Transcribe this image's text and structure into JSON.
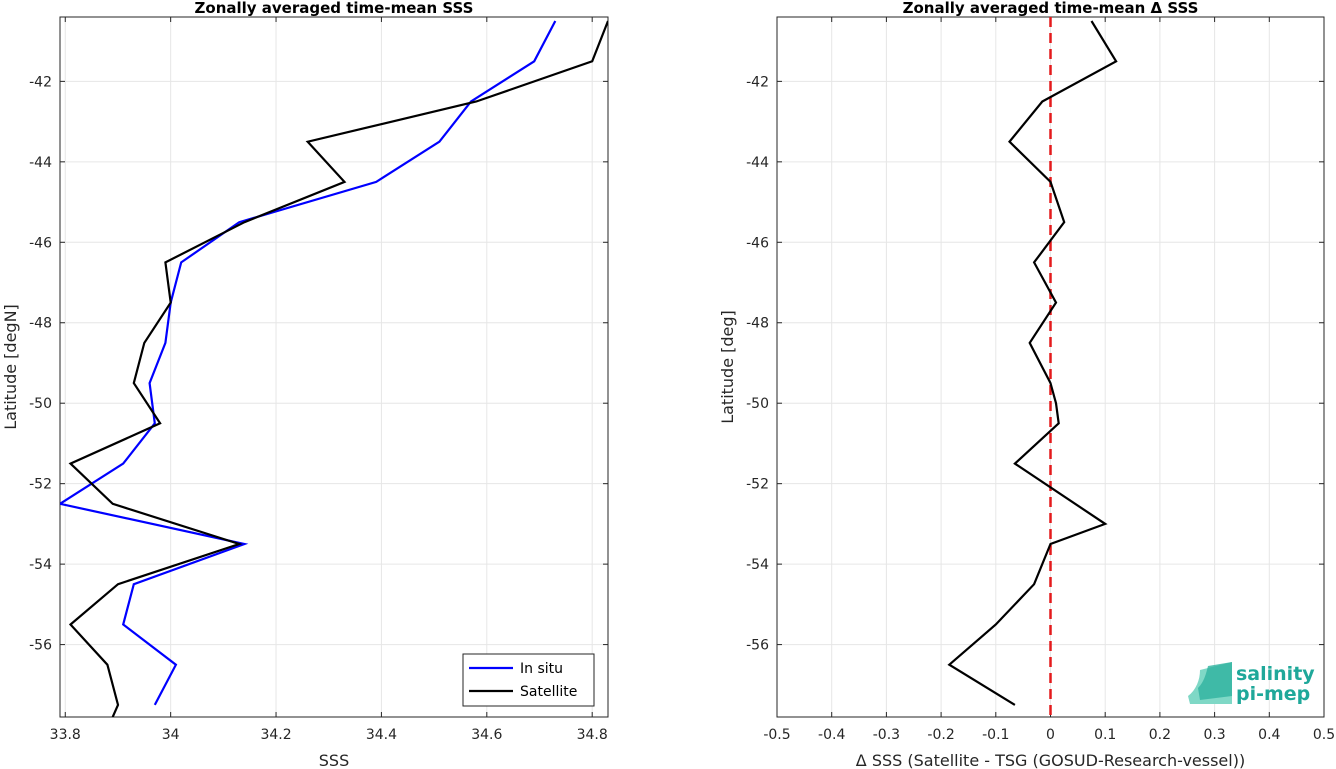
{
  "chart_data": [
    {
      "type": "line",
      "title": "Zonally averaged time-mean SSS",
      "xlabel": "SSS",
      "ylabel": "Latitude [degN]",
      "xlim": [
        33.79,
        34.83
      ],
      "ylim": [
        -57.8,
        -40.4
      ],
      "xticks": [
        "33.8",
        "34",
        "34.2",
        "34.4",
        "34.6",
        "34.8"
      ],
      "xtick_values": [
        33.8,
        34.0,
        34.2,
        34.4,
        34.6,
        34.8
      ],
      "yticks": [
        "-42",
        "-44",
        "-46",
        "-48",
        "-50",
        "-52",
        "-54",
        "-56"
      ],
      "ytick_values": [
        -42,
        -44,
        -46,
        -48,
        -50,
        -52,
        -54,
        -56
      ],
      "grid": true,
      "legend_position": "bottom-right",
      "series": [
        {
          "name": "In situ",
          "color": "#0000ff",
          "x": [
            34.73,
            34.69,
            34.57,
            34.51,
            34.39,
            34.13,
            34.02,
            34.0,
            33.99,
            33.96,
            33.97,
            33.91,
            33.79,
            34.14,
            33.93,
            33.91,
            34.01,
            33.97
          ],
          "y": [
            -40.5,
            -41.5,
            -42.5,
            -43.5,
            -44.5,
            -45.5,
            -46.5,
            -47.5,
            -48.5,
            -49.5,
            -50.5,
            -51.5,
            -52.5,
            -53.5,
            -54.5,
            -55.5,
            -56.5,
            -57.5
          ]
        },
        {
          "name": "Satellite",
          "color": "#000000",
          "x": [
            34.83,
            34.8,
            34.58,
            34.26,
            34.33,
            34.14,
            33.99,
            34.0,
            33.95,
            33.93,
            33.98,
            33.81,
            33.89,
            34.13,
            33.9,
            33.81,
            33.88,
            33.9,
            33.89
          ],
          "y": [
            -40.5,
            -41.5,
            -42.5,
            -43.5,
            -44.5,
            -45.5,
            -46.5,
            -47.5,
            -48.5,
            -49.5,
            -50.5,
            -51.5,
            -52.5,
            -53.5,
            -54.5,
            -55.5,
            -56.5,
            -57.5,
            -57.8
          ]
        }
      ]
    },
    {
      "type": "line",
      "title": "Zonally averaged time-mean Δ SSS",
      "xlabel": "Δ SSS (Satellite - TSG (GOSUD-Research-vessel))",
      "ylabel": "Latitude [deg]",
      "xlim": [
        -0.5,
        0.5
      ],
      "ylim": [
        -57.8,
        -40.4
      ],
      "xticks": [
        "-0.5",
        "-0.4",
        "-0.3",
        "-0.2",
        "-0.1",
        "0",
        "0.1",
        "0.2",
        "0.3",
        "0.4",
        "0.5"
      ],
      "xtick_values": [
        -0.5,
        -0.4,
        -0.3,
        -0.2,
        -0.1,
        0,
        0.1,
        0.2,
        0.3,
        0.4,
        0.5
      ],
      "yticks": [
        "-42",
        "-44",
        "-46",
        "-48",
        "-50",
        "-52",
        "-54",
        "-56"
      ],
      "ytick_values": [
        -42,
        -44,
        -46,
        -48,
        -50,
        -52,
        -54,
        -56
      ],
      "grid": true,
      "reference_line": {
        "x": 0,
        "color": "#e41a1c",
        "style": "dashed"
      },
      "series": [
        {
          "color": "#000000",
          "x": [
            0.075,
            0.12,
            -0.015,
            -0.075,
            0.0,
            0.025,
            -0.03,
            0.01,
            -0.038,
            0.0,
            0.01,
            0.015,
            -0.065,
            0.1,
            0.0,
            -0.03,
            -0.1,
            -0.185,
            -0.065
          ],
          "y": [
            -40.5,
            -41.5,
            -42.5,
            -43.5,
            -44.5,
            -45.5,
            -46.5,
            -47.5,
            -48.5,
            -49.5,
            -50.0,
            -50.5,
            -51.5,
            -53.0,
            -53.5,
            -54.5,
            -55.5,
            -56.5,
            -57.5
          ]
        }
      ]
    }
  ],
  "logo": {
    "line1": "salinity",
    "line2": "pi-mep",
    "color": "#1fa89a"
  }
}
